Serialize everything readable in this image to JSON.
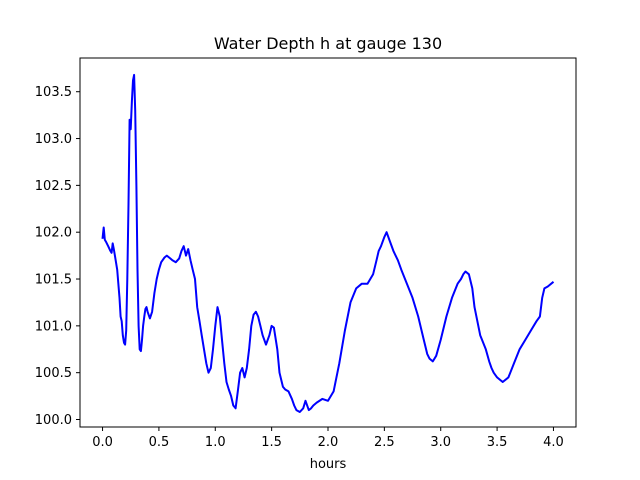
{
  "chart_data": {
    "type": "line",
    "title": "Water Depth h at gauge 130",
    "xlabel": "hours",
    "ylabel": "",
    "xlim": [
      -0.2,
      4.2
    ],
    "ylim": [
      99.92,
      103.86
    ],
    "xticks": [
      "0.0",
      "0.5",
      "1.0",
      "1.5",
      "2.0",
      "2.5",
      "3.0",
      "3.5",
      "4.0"
    ],
    "yticks": [
      "100.0",
      "100.5",
      "101.0",
      "101.5",
      "102.0",
      "102.5",
      "103.0",
      "103.5"
    ],
    "grid": false,
    "legend": "none",
    "series": [
      {
        "color": "#0000ff",
        "x": [
          0.0,
          0.01,
          0.02,
          0.03,
          0.05,
          0.07,
          0.08,
          0.09,
          0.1,
          0.11,
          0.13,
          0.15,
          0.16,
          0.17,
          0.18,
          0.19,
          0.2,
          0.21,
          0.22,
          0.23,
          0.24,
          0.25,
          0.26,
          0.27,
          0.28,
          0.29,
          0.3,
          0.31,
          0.32,
          0.33,
          0.34,
          0.35,
          0.36,
          0.37,
          0.38,
          0.39,
          0.4,
          0.42,
          0.44,
          0.46,
          0.48,
          0.5,
          0.52,
          0.55,
          0.57,
          0.6,
          0.62,
          0.65,
          0.68,
          0.7,
          0.72,
          0.74,
          0.76,
          0.78,
          0.8,
          0.82,
          0.84,
          0.86,
          0.88,
          0.9,
          0.92,
          0.94,
          0.96,
          0.98,
          1.0,
          1.02,
          1.04,
          1.06,
          1.08,
          1.1,
          1.12,
          1.14,
          1.16,
          1.18,
          1.2,
          1.22,
          1.24,
          1.26,
          1.28,
          1.3,
          1.32,
          1.34,
          1.36,
          1.38,
          1.4,
          1.42,
          1.45,
          1.48,
          1.5,
          1.52,
          1.55,
          1.57,
          1.6,
          1.62,
          1.65,
          1.68,
          1.7,
          1.72,
          1.75,
          1.78,
          1.8,
          1.83,
          1.85,
          1.87,
          1.9,
          1.95,
          2.0,
          2.05,
          2.1,
          2.15,
          2.2,
          2.25,
          2.3,
          2.35,
          2.4,
          2.43,
          2.45,
          2.47,
          2.5,
          2.52,
          2.55,
          2.58,
          2.6,
          2.62,
          2.65,
          2.7,
          2.75,
          2.8,
          2.85,
          2.88,
          2.9,
          2.93,
          2.96,
          3.0,
          3.05,
          3.1,
          3.15,
          3.18,
          3.2,
          3.22,
          3.25,
          3.28,
          3.3,
          3.35,
          3.4,
          3.43,
          3.45,
          3.47,
          3.5,
          3.55,
          3.6,
          3.65,
          3.7,
          3.75,
          3.8,
          3.85,
          3.88,
          3.9,
          3.92,
          3.95,
          3.98,
          4.0
        ],
        "y": [
          101.93,
          102.05,
          101.92,
          101.9,
          101.85,
          101.8,
          101.78,
          101.88,
          101.82,
          101.75,
          101.6,
          101.3,
          101.1,
          101.05,
          100.9,
          100.82,
          100.8,
          100.95,
          101.5,
          102.3,
          103.2,
          103.1,
          103.4,
          103.62,
          103.68,
          103.3,
          102.5,
          101.6,
          101.0,
          100.75,
          100.73,
          100.85,
          101.0,
          101.1,
          101.18,
          101.2,
          101.15,
          101.08,
          101.15,
          101.35,
          101.5,
          101.6,
          101.68,
          101.73,
          101.75,
          101.72,
          101.7,
          101.68,
          101.72,
          101.8,
          101.85,
          101.75,
          101.82,
          101.7,
          101.6,
          101.5,
          101.2,
          101.05,
          100.9,
          100.75,
          100.6,
          100.5,
          100.55,
          100.75,
          101.0,
          101.2,
          101.1,
          100.85,
          100.6,
          100.4,
          100.32,
          100.25,
          100.15,
          100.12,
          100.3,
          100.5,
          100.55,
          100.45,
          100.55,
          100.75,
          101.0,
          101.12,
          101.15,
          101.1,
          101.0,
          100.9,
          100.8,
          100.9,
          101.0,
          100.98,
          100.75,
          100.5,
          100.35,
          100.32,
          100.3,
          100.22,
          100.15,
          100.1,
          100.08,
          100.12,
          100.2,
          100.1,
          100.12,
          100.15,
          100.18,
          100.22,
          100.2,
          100.3,
          100.6,
          100.95,
          101.25,
          101.4,
          101.45,
          101.45,
          101.55,
          101.7,
          101.8,
          101.85,
          101.95,
          102.0,
          101.9,
          101.8,
          101.75,
          101.7,
          101.6,
          101.45,
          101.3,
          101.1,
          100.85,
          100.7,
          100.65,
          100.62,
          100.68,
          100.85,
          101.1,
          101.3,
          101.45,
          101.5,
          101.55,
          101.58,
          101.55,
          101.4,
          101.2,
          100.9,
          100.75,
          100.62,
          100.55,
          100.5,
          100.45,
          100.4,
          100.45,
          100.6,
          100.75,
          100.85,
          100.95,
          101.05,
          101.1,
          101.3,
          101.4,
          101.42,
          101.45,
          101.47
        ]
      }
    ]
  }
}
